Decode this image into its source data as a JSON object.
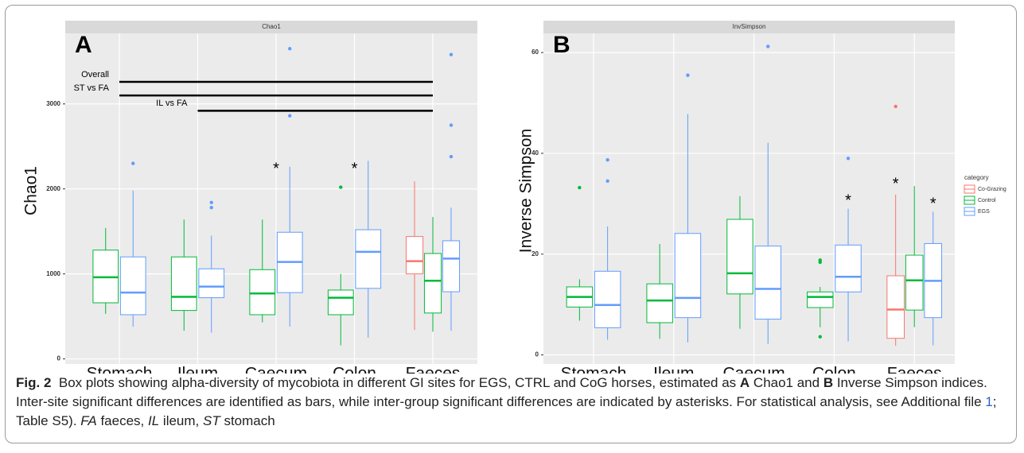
{
  "chart_data": [
    {
      "type": "box",
      "panel": "A",
      "title": "Chao1",
      "y_label": "Chao1",
      "categories": [
        "Stomach",
        "Ileum",
        "Caecum",
        "Colon",
        "Faeces"
      ],
      "ylim": [
        -60,
        3830
      ],
      "yticks": [
        0,
        1000,
        2000,
        3000
      ],
      "grid": true,
      "series": [
        {
          "name": "Co-Grazing",
          "color": "#F8766D",
          "values": [
            null,
            null,
            null,
            null,
            {
              "min": 340,
              "q1": 1000,
              "median": 1150,
              "q3": 1440,
              "max": 2090,
              "outliers": []
            }
          ]
        },
        {
          "name": "Control",
          "color": "#00BA38",
          "values": [
            {
              "min": 530,
              "q1": 660,
              "median": 960,
              "q3": 1280,
              "max": 1540,
              "outliers": []
            },
            {
              "min": 330,
              "q1": 570,
              "median": 730,
              "q3": 1200,
              "max": 1640,
              "outliers": []
            },
            {
              "min": 430,
              "q1": 520,
              "median": 770,
              "q3": 1050,
              "max": 1640,
              "outliers": []
            },
            {
              "min": 160,
              "q1": 520,
              "median": 720,
              "q3": 810,
              "max": 1000,
              "outliers": [
                2020
              ]
            },
            {
              "min": 320,
              "q1": 540,
              "median": 920,
              "q3": 1240,
              "max": 1670,
              "outliers": []
            }
          ]
        },
        {
          "name": "EGS",
          "color": "#619CFF",
          "values": [
            {
              "min": 380,
              "q1": 520,
              "median": 780,
              "q3": 1200,
              "max": 1980,
              "outliers": [
                2300
              ]
            },
            {
              "min": 310,
              "q1": 720,
              "median": 850,
              "q3": 1060,
              "max": 1450,
              "outliers": [
                1780,
                1840
              ]
            },
            {
              "min": 380,
              "q1": 780,
              "median": 1140,
              "q3": 1490,
              "max": 2260,
              "outliers": [
                2860,
                3650
              ]
            },
            {
              "min": 250,
              "q1": 830,
              "median": 1260,
              "q3": 1520,
              "max": 2330,
              "outliers": []
            },
            {
              "min": 330,
              "q1": 790,
              "median": 1180,
              "q3": 1390,
              "max": 1780,
              "outliers": [
                2380,
                2750,
                3580
              ]
            }
          ]
        }
      ],
      "significance_bars": [
        {
          "label": "Overall",
          "from": "Stomach",
          "to": "Faeces",
          "y": 3260
        },
        {
          "label": "ST vs FA",
          "from": "Stomach",
          "to": "Faeces",
          "y": 3100
        },
        {
          "label": "IL vs FA",
          "from": "Ileum",
          "to": "Faeces",
          "y": 2920
        }
      ],
      "annotations": [
        {
          "text": "*",
          "category": "Caecum",
          "y": 2230
        },
        {
          "text": "*",
          "category": "Colon",
          "y": 2230
        }
      ]
    },
    {
      "type": "box",
      "panel": "B",
      "title": "InvSimpson",
      "y_label": "Inverse Simpson",
      "categories": [
        "Stomach",
        "Ileum",
        "Caecum",
        "Colon",
        "Faeces"
      ],
      "ylim": [
        -1.8,
        63.8
      ],
      "yticks": [
        0,
        20,
        40,
        60
      ],
      "grid": true,
      "legend": {
        "title": "category",
        "position": "right"
      },
      "series": [
        {
          "name": "Co-Grazing",
          "color": "#F8766D",
          "values": [
            null,
            null,
            null,
            null,
            {
              "min": 1.8,
              "q1": 3.3,
              "median": 9,
              "q3": 15.7,
              "max": 31.8,
              "outliers": [
                49.3
              ]
            }
          ]
        },
        {
          "name": "Control",
          "color": "#00BA38",
          "values": [
            {
              "min": 6.8,
              "q1": 9.5,
              "median": 11.5,
              "q3": 13.5,
              "max": 15,
              "outliers": [
                33.2
              ]
            },
            {
              "min": 3.2,
              "q1": 6.4,
              "median": 10.8,
              "q3": 14.1,
              "max": 22,
              "outliers": []
            },
            {
              "min": 5.2,
              "q1": 12.1,
              "median": 16.2,
              "q3": 26.9,
              "max": 31.5,
              "outliers": []
            },
            {
              "min": 5.5,
              "q1": 9.4,
              "median": 11.5,
              "q3": 12.5,
              "max": 13.5,
              "outliers": [
                3.6,
                18.4,
                18.8
              ]
            },
            {
              "min": 5.5,
              "q1": 8.9,
              "median": 14.8,
              "q3": 19.8,
              "max": 33.5,
              "outliers": []
            }
          ]
        },
        {
          "name": "EGS",
          "color": "#619CFF",
          "values": [
            {
              "min": 3,
              "q1": 5.4,
              "median": 9.9,
              "q3": 16.6,
              "max": 25.5,
              "outliers": [
                34.5,
                38.7
              ]
            },
            {
              "min": 2.5,
              "q1": 7.4,
              "median": 11.3,
              "q3": 24.1,
              "max": 47.8,
              "outliers": [
                55.5
              ]
            },
            {
              "min": 2.2,
              "q1": 7.1,
              "median": 13.1,
              "q3": 21.6,
              "max": 42.1,
              "outliers": [
                61.2
              ]
            },
            {
              "min": 2.7,
              "q1": 12.5,
              "median": 15.5,
              "q3": 21.8,
              "max": 29,
              "outliers": [
                39
              ]
            },
            {
              "min": 1.9,
              "q1": 7.4,
              "median": 14.7,
              "q3": 22.1,
              "max": 28.4,
              "outliers": []
            }
          ]
        }
      ],
      "annotations": [
        {
          "text": "*",
          "category": "Colon",
          "series": "EGS",
          "y": 30.5
        },
        {
          "text": "*",
          "category": "Faeces",
          "series": "Co-Grazing",
          "y": 33.8
        },
        {
          "text": "*",
          "category": "Faeces",
          "series": "EGS",
          "y": 29.9
        }
      ]
    }
  ],
  "caption": {
    "runs": [
      {
        "text": "Fig. 2",
        "style": "bold"
      },
      {
        "text": "  Box plots showing alpha-diversity of mycobiota in different GI sites for EGS, CTRL and CoG horses, estimated as ",
        "style": "normal"
      },
      {
        "text": "A",
        "style": "bold"
      },
      {
        "text": " Chao1 and ",
        "style": "normal"
      },
      {
        "text": "B",
        "style": "bold"
      },
      {
        "text": " Inverse Simpson indices. Inter-site significant differences are identified as bars, while inter-group significant differences are indicated by asterisks. For statistical analysis, see Additional file ",
        "style": "normal"
      },
      {
        "text": "1",
        "style": "link"
      },
      {
        "text": "; Table S5). ",
        "style": "normal"
      },
      {
        "text": "FA",
        "style": "italic"
      },
      {
        "text": " faeces, ",
        "style": "normal"
      },
      {
        "text": "IL",
        "style": "italic"
      },
      {
        "text": " ileum, ",
        "style": "normal"
      },
      {
        "text": "ST",
        "style": "italic"
      },
      {
        "text": " stomach",
        "style": "normal"
      }
    ]
  }
}
